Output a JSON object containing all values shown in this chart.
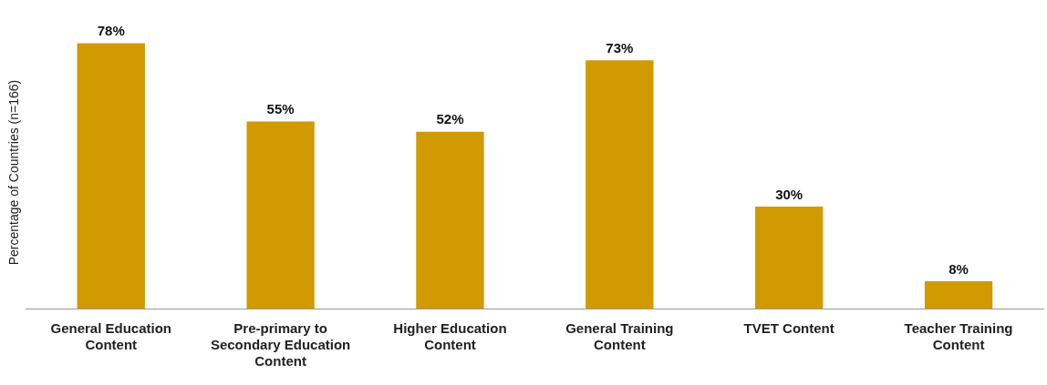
{
  "chart_data": {
    "type": "bar",
    "ylabel": "Percentage of Countries (n=166)",
    "categories": [
      "General Education Content",
      "Pre-primary to Secondary Education Content",
      "Higher Education Content",
      "General Training Content",
      "TVET Content",
      "Teacher Training Content"
    ],
    "values": [
      78,
      55,
      52,
      73,
      30,
      8
    ],
    "value_labels": [
      "78%",
      "55%",
      "52%",
      "73%",
      "30%",
      "8%"
    ],
    "color": "#d09a00",
    "grid": false,
    "legend": false
  }
}
